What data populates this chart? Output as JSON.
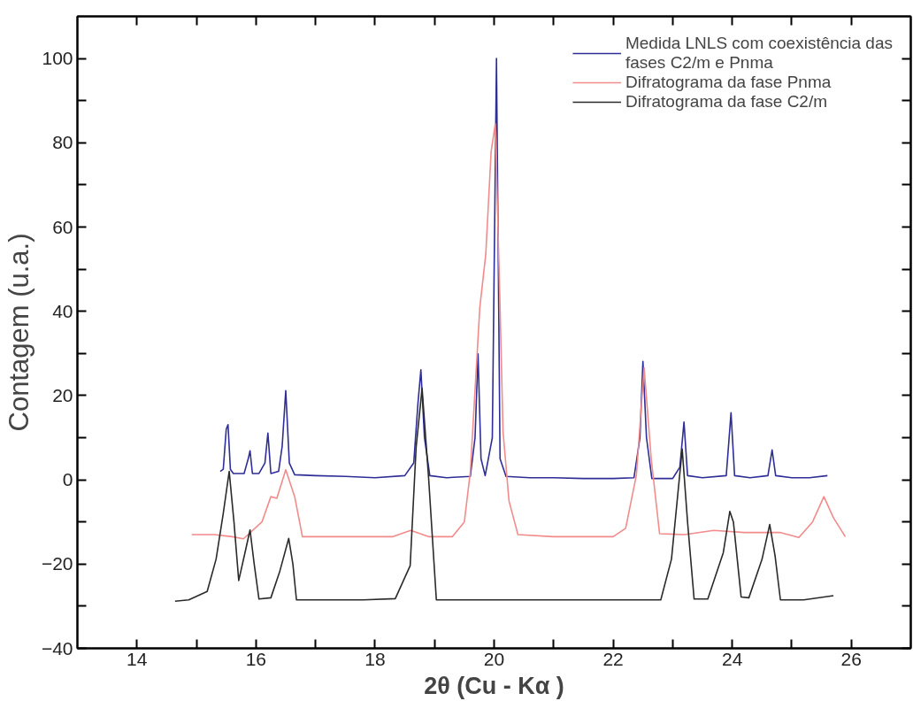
{
  "chart_data": {
    "type": "line",
    "xlabel": "2θ (Cu - Kα )",
    "ylabel": "Contagem (u.a.)",
    "xlim": [
      13,
      27
    ],
    "ylim": [
      -40,
      110
    ],
    "xticks": [
      14,
      {
        "value": 15,
        "label": null
      },
      16,
      {
        "value": 17,
        "label": null
      },
      18,
      {
        "value": 19,
        "label": null
      },
      20,
      {
        "value": 21,
        "label": null
      },
      22,
      {
        "value": 23,
        "label": null
      },
      24,
      {
        "value": 25,
        "label": null
      },
      26
    ],
    "yticks": [
      -40,
      {
        "value": -30,
        "label": null
      },
      -20,
      {
        "value": -10,
        "label": null
      },
      0,
      {
        "value": 10,
        "label": null
      },
      20,
      {
        "value": 30,
        "label": null
      },
      40,
      {
        "value": 50,
        "label": null
      },
      60,
      {
        "value": 70,
        "label": null
      },
      80,
      {
        "value": 90,
        "label": null
      },
      100
    ],
    "grid": false,
    "legend": "top right",
    "marker": "none",
    "line_style": "solid",
    "series": [
      {
        "name": "Medida LNLS com coexistência das fases C2/m e Pnma",
        "color": "#2e2e96",
        "x": [
          15.4,
          15.45,
          15.5,
          15.53,
          15.57,
          15.62,
          15.8,
          15.87,
          15.9,
          15.94,
          16.05,
          16.15,
          16.2,
          16.25,
          16.38,
          16.44,
          16.5,
          16.56,
          16.65,
          17.0,
          17.5,
          18.0,
          18.5,
          18.65,
          18.72,
          18.77,
          18.83,
          18.92,
          19.2,
          19.6,
          19.68,
          19.73,
          19.78,
          19.85,
          19.97,
          20.04,
          20.1,
          20.2,
          20.6,
          21.0,
          21.5,
          22.0,
          22.35,
          22.45,
          22.5,
          22.56,
          22.65,
          23.0,
          23.12,
          23.19,
          23.25,
          23.5,
          23.9,
          23.98,
          24.04,
          24.3,
          24.6,
          24.67,
          24.73,
          25.0,
          25.3,
          25.6
        ],
        "values": [
          2,
          2.5,
          12,
          13.1,
          2.5,
          1.5,
          1.5,
          5,
          6.9,
          1.5,
          1.5,
          4,
          11.1,
          1.5,
          2,
          8,
          21.2,
          4,
          1.2,
          1,
          0.8,
          0.5,
          1,
          4,
          18,
          26.1,
          10,
          1,
          0.5,
          0.8,
          10,
          29.9,
          5,
          1,
          10,
          100,
          5,
          0.8,
          0.5,
          0.5,
          0.3,
          0.3,
          0.5,
          10,
          28.1,
          10,
          0.3,
          0.3,
          3,
          13.7,
          1,
          0.5,
          1,
          15.9,
          1,
          0.5,
          1,
          7.1,
          1,
          0.5,
          0.5,
          1
        ]
      },
      {
        "name": "Difratograma da fase Pnma",
        "color": "#f28b8b",
        "x": [
          14.92,
          15.3,
          15.6,
          15.79,
          16.1,
          16.25,
          16.35,
          16.5,
          16.65,
          16.78,
          17.2,
          17.8,
          18.3,
          18.6,
          18.9,
          19.3,
          19.5,
          19.6,
          19.76,
          19.86,
          19.95,
          20.02,
          20.1,
          20.15,
          20.25,
          20.4,
          21.0,
          21.6,
          22.0,
          22.21,
          22.39,
          22.52,
          22.64,
          22.78,
          23.2,
          23.69,
          24.2,
          24.8,
          25.12,
          25.35,
          25.54,
          25.7,
          25.9
        ],
        "values": [
          -13,
          -13,
          -13.5,
          -14,
          -10,
          -4,
          -4.4,
          2.4,
          -4,
          -13.5,
          -13.5,
          -13.5,
          -13.5,
          -12,
          -13.5,
          -13.5,
          -10,
          1.8,
          40.9,
          53.5,
          77.9,
          84.5,
          41,
          11.5,
          -5,
          -13,
          -13.5,
          -13.5,
          -13.5,
          -11.5,
          1.1,
          26.6,
          4.9,
          -12.8,
          -13,
          -12,
          -12.5,
          -12.5,
          -13.7,
          -10,
          -4,
          -9,
          -13.5
        ]
      },
      {
        "name": "Difratograma da fase C2/m",
        "color": "#2a2a2a",
        "x": [
          14.64,
          14.87,
          15.18,
          15.33,
          15.45,
          15.55,
          15.63,
          15.71,
          15.82,
          15.9,
          15.97,
          16.05,
          16.25,
          16.4,
          16.55,
          16.62,
          16.68,
          17.2,
          17.8,
          18.34,
          18.59,
          18.69,
          18.79,
          18.9,
          19.03,
          19.5,
          20.2,
          21.0,
          21.8,
          22.5,
          22.8,
          22.98,
          23.16,
          23.25,
          23.36,
          23.59,
          23.85,
          23.96,
          24.02,
          24.15,
          24.28,
          24.5,
          24.63,
          24.72,
          24.81,
          25.2,
          25.7
        ],
        "values": [
          -28.8,
          -28.5,
          -26.5,
          -18.8,
          -8,
          2,
          -10,
          -23.9,
          -17,
          -11.9,
          -20,
          -28.3,
          -28,
          -21.7,
          -13.9,
          -20,
          -28.5,
          -28.5,
          -28.5,
          -28.2,
          -20.4,
          7.7,
          21.7,
          0.4,
          -28.5,
          -28.5,
          -28.5,
          -28.5,
          -28.5,
          -28.5,
          -28.5,
          -18.8,
          7.3,
          -10,
          -28.3,
          -28.3,
          -17.3,
          -7.5,
          -10,
          -27.8,
          -28,
          -18.9,
          -10.6,
          -18,
          -28.5,
          -28.5,
          -27.5
        ]
      }
    ]
  }
}
